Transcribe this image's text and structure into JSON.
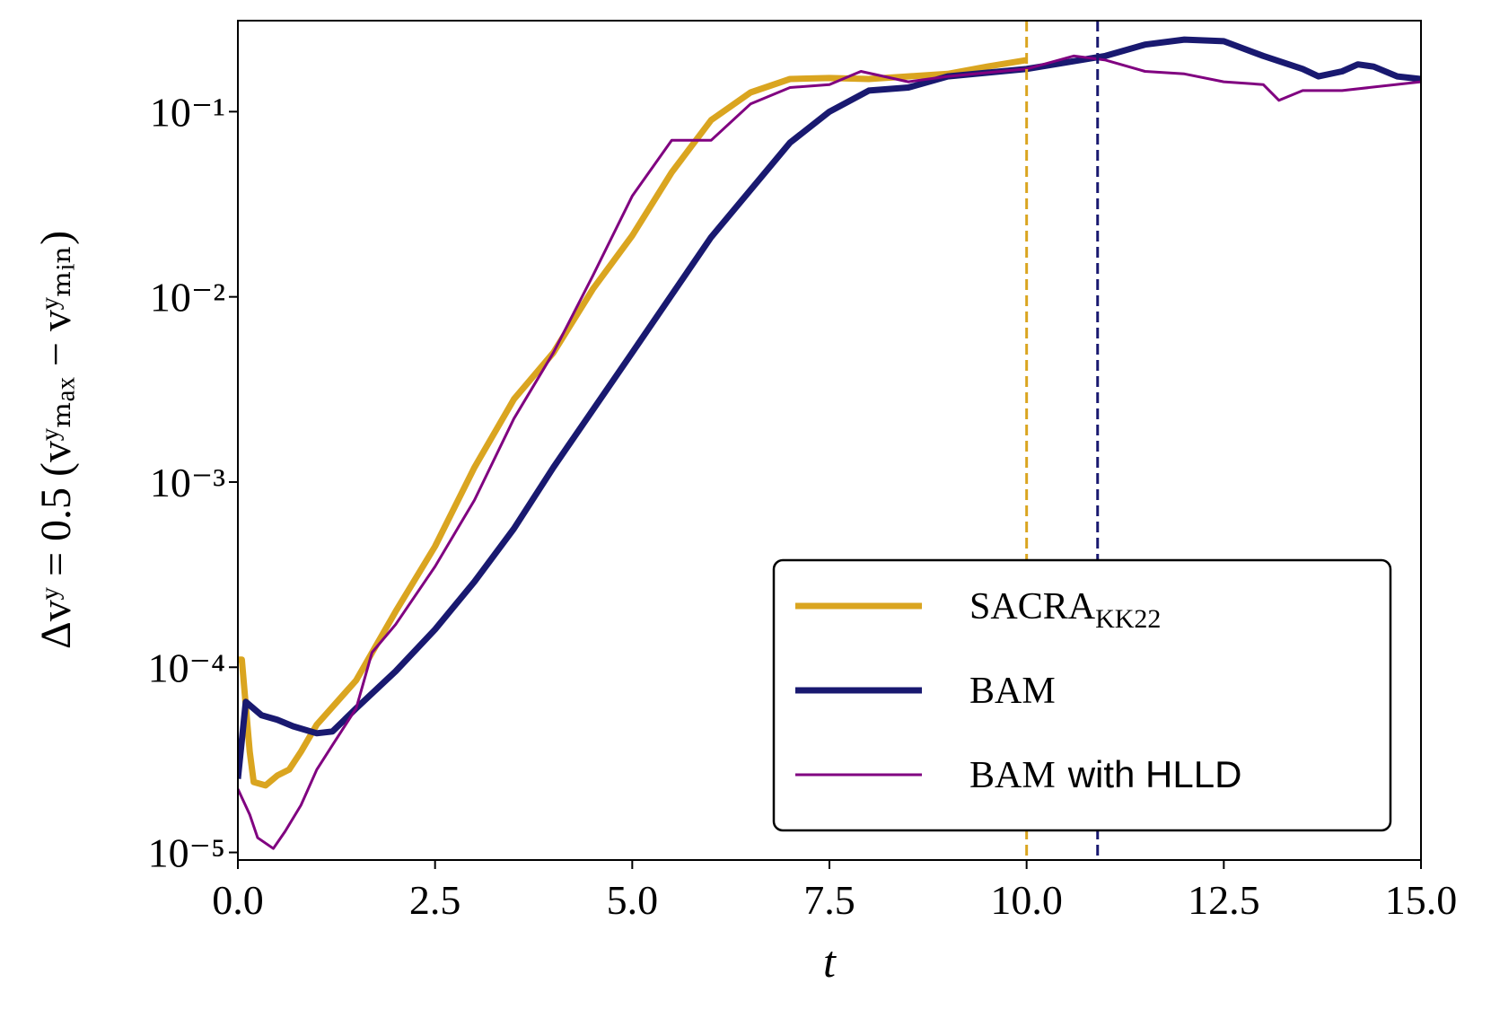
{
  "chart_data": {
    "type": "line",
    "x_label": "t",
    "y_label": "Δvʸ = 0.5 (vʸₘₐₓ − vʸₘᵢₙ)",
    "log_y": true,
    "xlim": [
      0,
      15
    ],
    "ylim": [
      9.1e-06,
      0.31
    ],
    "xticks": [
      {
        "value": 0,
        "label": "0.0"
      },
      2.5,
      {
        "value": 5,
        "label": "5.0"
      },
      7.5,
      {
        "value": 10,
        "label": "10.0"
      },
      12.5,
      {
        "value": 15,
        "label": "15.0"
      }
    ],
    "yticks": [
      {
        "value": 1e-05,
        "label": "10⁻⁵"
      },
      {
        "value": 0.0001,
        "label": "10⁻⁴"
      },
      {
        "value": 0.001,
        "label": "10⁻³"
      },
      {
        "value": 0.01,
        "label": "10⁻²"
      },
      {
        "value": 0.1,
        "label": "10⁻¹"
      }
    ],
    "legend_position": "lower right",
    "series": [
      {
        "name": "SACRA",
        "name_subscript": "KK22",
        "color": "#daa520",
        "width": 7,
        "x": [
          0,
          0.05,
          0.15,
          0.2,
          0.35,
          0.5,
          0.65,
          0.8,
          1.0,
          1.5,
          2.0,
          2.5,
          3.0,
          3.5,
          4.0,
          4.5,
          5.0,
          5.5,
          6.0,
          6.5,
          7.0,
          7.5,
          8.0,
          8.5,
          9.0,
          9.5,
          10.0
        ],
        "values": [
          0.00011,
          0.00011,
          3.5e-05,
          2.4e-05,
          2.3e-05,
          2.6e-05,
          2.8e-05,
          3.5e-05,
          4.9e-05,
          8.5e-05,
          0.0002,
          0.00045,
          0.0012,
          0.0028,
          0.005,
          0.011,
          0.0214,
          0.047,
          0.09,
          0.127,
          0.15,
          0.152,
          0.15,
          0.155,
          0.16,
          0.175,
          0.19
        ]
      },
      {
        "name": "BAM",
        "color": "#191970",
        "width": 7,
        "x": [
          0,
          0.1,
          0.3,
          0.5,
          0.7,
          1.0,
          1.2,
          1.5,
          2.0,
          2.5,
          3.0,
          3.5,
          4.0,
          5.0,
          6.0,
          7.0,
          7.5,
          8.0,
          8.5,
          9.0,
          10.0,
          11.0,
          11.5,
          12.0,
          12.5,
          13.0,
          13.5,
          13.7,
          14.0,
          14.2,
          14.4,
          14.7,
          15.0
        ],
        "values": [
          2.5e-05,
          6.5e-05,
          5.5e-05,
          5.2e-05,
          4.8e-05,
          4.4e-05,
          4.5e-05,
          6e-05,
          9.5e-05,
          0.00016,
          0.00029,
          0.00056,
          0.0012,
          0.005,
          0.021,
          0.068,
          0.1,
          0.13,
          0.135,
          0.155,
          0.17,
          0.2,
          0.23,
          0.245,
          0.24,
          0.2,
          0.17,
          0.155,
          0.165,
          0.18,
          0.175,
          0.155,
          0.15
        ]
      },
      {
        "name": "BAM",
        "name_suffix": "with HLLD",
        "color": "#800080",
        "width": 3,
        "x": [
          0,
          0.15,
          0.25,
          0.45,
          0.6,
          0.8,
          1.0,
          1.2,
          1.5,
          1.7,
          2.0,
          2.5,
          3.0,
          3.5,
          4.0,
          4.5,
          5.0,
          5.5,
          6.0,
          6.5,
          7.0,
          7.5,
          7.9,
          8.5,
          9.0,
          10.0,
          10.6,
          11.0,
          11.5,
          12.0,
          12.5,
          13.0,
          13.2,
          13.5,
          14.0,
          15.0
        ],
        "values": [
          2.2e-05,
          1.6e-05,
          1.2e-05,
          1.05e-05,
          1.3e-05,
          1.8e-05,
          2.8e-05,
          3.8e-05,
          6e-05,
          0.00012,
          0.00017,
          0.00035,
          0.0008,
          0.0022,
          0.005,
          0.013,
          0.035,
          0.07,
          0.07,
          0.11,
          0.135,
          0.14,
          0.165,
          0.145,
          0.155,
          0.17,
          0.2,
          0.19,
          0.165,
          0.16,
          0.145,
          0.14,
          0.115,
          0.13,
          0.13,
          0.145
        ]
      }
    ],
    "vlines": [
      {
        "x": 10,
        "color": "#daa520"
      },
      {
        "x": 10.9,
        "color": "#191970"
      }
    ]
  }
}
